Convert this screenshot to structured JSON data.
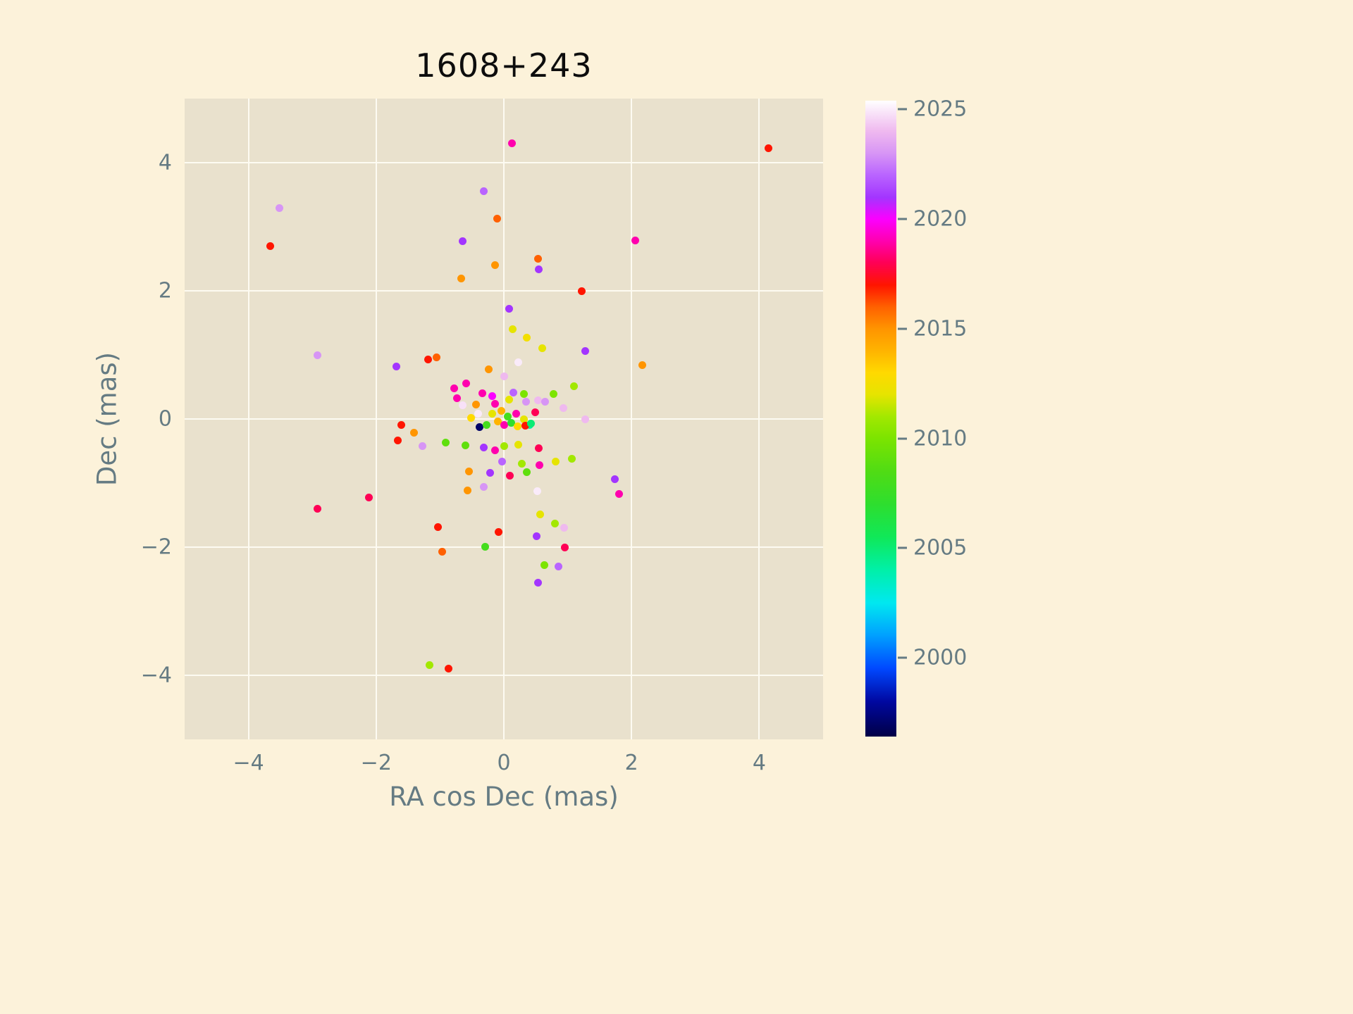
{
  "chart_data": {
    "type": "scatter",
    "title": "1608+243",
    "xlabel": "RA cos Dec (mas)",
    "ylabel": "Dec (mas)",
    "xlim": [
      -5,
      5
    ],
    "ylim": [
      -5,
      5
    ],
    "x_ticks": [
      -4,
      -2,
      0,
      2,
      4
    ],
    "y_ticks": [
      -4,
      -2,
      0,
      2,
      4
    ],
    "grid": true,
    "legend": "none",
    "colorbar": {
      "vmin": 1996.4,
      "vmax": 2025.4,
      "ticks": [
        2000,
        2005,
        2010,
        2015,
        2020,
        2025
      ],
      "meaning": "epoch year of observation"
    },
    "colormap_stops": [
      [
        1996.4,
        "#000046"
      ],
      [
        1998.0,
        "#0008a0"
      ],
      [
        1999.5,
        "#0048ff"
      ],
      [
        2001.0,
        "#00a0ff"
      ],
      [
        2002.5,
        "#00e8f0"
      ],
      [
        2004.0,
        "#00f0a8"
      ],
      [
        2005.5,
        "#10e858"
      ],
      [
        2007.0,
        "#2ede2e"
      ],
      [
        2008.5,
        "#50dc14"
      ],
      [
        2010.0,
        "#7ce400"
      ],
      [
        2011.0,
        "#a2e800"
      ],
      [
        2012.0,
        "#e6e400"
      ],
      [
        2013.0,
        "#ffd900"
      ],
      [
        2014.0,
        "#ffb300"
      ],
      [
        2015.0,
        "#ff9500"
      ],
      [
        2016.0,
        "#ff6000"
      ],
      [
        2017.0,
        "#ff1500"
      ],
      [
        2018.0,
        "#ff0055"
      ],
      [
        2019.0,
        "#ff00ae"
      ],
      [
        2020.0,
        "#fb00ff"
      ],
      [
        2021.0,
        "#a335ff"
      ],
      [
        2022.0,
        "#b964ff"
      ],
      [
        2023.0,
        "#d795f5"
      ],
      [
        2024.0,
        "#efb9ef"
      ],
      [
        2025.4,
        "#ffffff"
      ]
    ],
    "points": [
      [
        0.13,
        4.3,
        2019
      ],
      [
        4.15,
        4.22,
        2017
      ],
      [
        -3.52,
        3.29,
        2023
      ],
      [
        -0.31,
        3.56,
        2022
      ],
      [
        -3.66,
        2.7,
        2017
      ],
      [
        -0.1,
        3.13,
        2016
      ],
      [
        -0.65,
        2.78,
        2021
      ],
      [
        2.06,
        2.79,
        2019
      ],
      [
        -0.14,
        2.4,
        2015
      ],
      [
        0.53,
        2.5,
        2016
      ],
      [
        0.55,
        2.33,
        2021
      ],
      [
        -0.67,
        2.19,
        2015
      ],
      [
        1.22,
        2.0,
        2017
      ],
      [
        0.08,
        1.72,
        2021
      ],
      [
        0.14,
        1.4,
        2012
      ],
      [
        0.36,
        1.27,
        2012.5
      ],
      [
        0.6,
        1.1,
        2012
      ],
      [
        1.27,
        1.06,
        2021
      ],
      [
        -2.92,
        1.0,
        2023
      ],
      [
        -1.19,
        0.93,
        2017
      ],
      [
        -1.05,
        0.96,
        2016
      ],
      [
        -1.68,
        0.82,
        2021
      ],
      [
        2.17,
        0.84,
        2015
      ],
      [
        -0.24,
        0.78,
        2015
      ],
      [
        0.23,
        0.89,
        2025
      ],
      [
        0.01,
        0.66,
        2024
      ],
      [
        -0.78,
        0.48,
        2019
      ],
      [
        -0.59,
        0.56,
        2019
      ],
      [
        -0.34,
        0.4,
        2019
      ],
      [
        1.1,
        0.51,
        2011
      ],
      [
        0.78,
        0.39,
        2010
      ],
      [
        0.08,
        0.3,
        2012
      ],
      [
        0.53,
        0.29,
        2024
      ],
      [
        -0.14,
        0.24,
        2019
      ],
      [
        0.35,
        0.27,
        2023
      ],
      [
        0.65,
        0.27,
        2023
      ],
      [
        0.93,
        0.17,
        2024
      ],
      [
        1.28,
        0.0,
        2024
      ],
      [
        -0.44,
        0.22,
        2015
      ],
      [
        -0.65,
        0.21,
        2024.8
      ],
      [
        -0.18,
        0.08,
        2012
      ],
      [
        -0.04,
        0.13,
        2014
      ],
      [
        0.06,
        0.04,
        2008
      ],
      [
        0.19,
        0.08,
        2019
      ],
      [
        0.31,
        0.0,
        2012
      ],
      [
        0.4,
        -0.09,
        2004
      ],
      [
        -0.38,
        -0.13,
        1997
      ],
      [
        -0.27,
        -0.09,
        2008
      ],
      [
        -1.61,
        -0.09,
        2017
      ],
      [
        -1.41,
        -0.21,
        2015
      ],
      [
        -1.66,
        -0.33,
        2017
      ],
      [
        -1.27,
        -0.42,
        2023
      ],
      [
        -0.91,
        -0.37,
        2009
      ],
      [
        -0.6,
        -0.41,
        2009
      ],
      [
        -0.31,
        -0.44,
        2021
      ],
      [
        -0.14,
        -0.49,
        2019
      ],
      [
        0.01,
        -0.42,
        2011
      ],
      [
        0.23,
        -0.4,
        2012
      ],
      [
        0.55,
        -0.46,
        2018
      ],
      [
        -0.03,
        -0.67,
        2022
      ],
      [
        0.28,
        -0.7,
        2011
      ],
      [
        0.56,
        -0.72,
        2019
      ],
      [
        0.81,
        -0.67,
        2012
      ],
      [
        1.06,
        -0.62,
        2011
      ],
      [
        -0.55,
        -0.82,
        2015
      ],
      [
        -0.22,
        -0.84,
        2021
      ],
      [
        0.09,
        -0.89,
        2018
      ],
      [
        0.36,
        -0.83,
        2009
      ],
      [
        -0.57,
        -1.11,
        2015
      ],
      [
        -0.31,
        -1.06,
        2023
      ],
      [
        1.74,
        -0.94,
        2021
      ],
      [
        1.8,
        -1.17,
        2019
      ],
      [
        -2.11,
        -1.23,
        2018
      ],
      [
        0.52,
        -1.13,
        2025
      ],
      [
        -2.92,
        -1.4,
        2018
      ],
      [
        0.57,
        -1.49,
        2012
      ],
      [
        0.8,
        -1.63,
        2011
      ],
      [
        -1.03,
        -1.69,
        2017
      ],
      [
        -0.08,
        -1.76,
        2017
      ],
      [
        0.51,
        -1.83,
        2021
      ],
      [
        0.94,
        -1.7,
        2024
      ],
      [
        -0.29,
        -1.99,
        2008
      ],
      [
        -0.97,
        -2.07,
        2016
      ],
      [
        0.95,
        -2.01,
        2018
      ],
      [
        0.64,
        -2.28,
        2010
      ],
      [
        0.85,
        -2.3,
        2022
      ],
      [
        0.53,
        -2.56,
        2021
      ],
      [
        -1.16,
        -3.84,
        2011
      ],
      [
        -0.87,
        -3.9,
        2017
      ],
      [
        -0.09,
        -0.04,
        2014
      ],
      [
        0.0,
        -0.09,
        2019
      ],
      [
        0.12,
        -0.06,
        2007
      ],
      [
        0.21,
        -0.11,
        2013
      ],
      [
        0.34,
        -0.1,
        2017
      ],
      [
        0.43,
        -0.07,
        2005
      ],
      [
        -0.18,
        0.36,
        2020
      ],
      [
        -0.4,
        0.08,
        2025
      ],
      [
        -0.51,
        0.02,
        2013
      ],
      [
        0.15,
        0.41,
        2022
      ],
      [
        -0.73,
        0.32,
        2019
      ],
      [
        0.49,
        0.1,
        2018
      ],
      [
        0.32,
        0.39,
        2010
      ]
    ]
  },
  "style": {
    "figure_bg": "#fcf2da",
    "axes_bg": "#e9e1cd",
    "grid_color": "#fdfbf2",
    "text_color": "#657b83",
    "title_color": "#0d0d0d"
  }
}
